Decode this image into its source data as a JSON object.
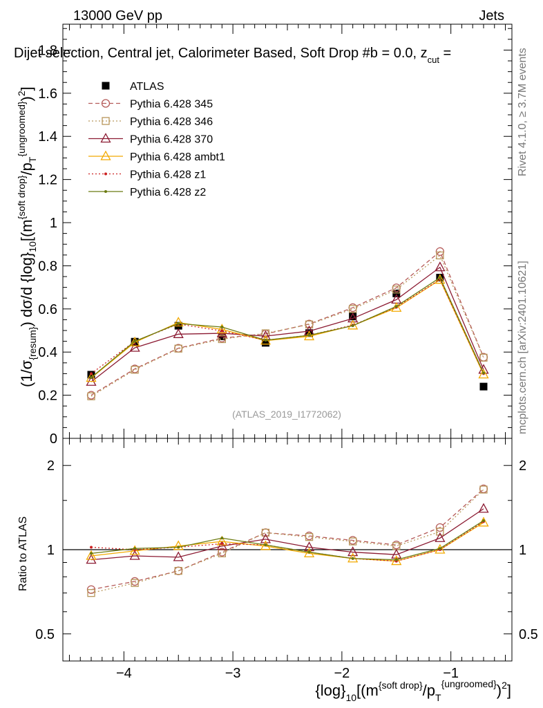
{
  "header": {
    "energy": "13000 GeV pp",
    "category": "Jets",
    "subtitle": "Dijet selection, Central jet, Calorimeter Based, Soft Drop #b = 0.0, z",
    "subtitle_sub": "cut",
    "subtitle_tail": " = "
  },
  "side_labels": {
    "rivet": "Rivet 4.1.0, ≥ 3.7M events",
    "mcplots": "mcplots.cern.ch [arXiv:2401.10621]"
  },
  "watermark": "(ATLAS_2019_I1772062)",
  "colors": {
    "ATLAS": "#000000",
    "Pythia 6.428 345": "#b55a58",
    "Pythia 6.428 346": "#b8965a",
    "Pythia 6.428 370": "#8b1a32",
    "Pythia 6.428 ambt1": "#f2a900",
    "Pythia 6.428 z1": "#cc2222",
    "Pythia 6.428 z2": "#6b7a10"
  },
  "chart_data": [
    {
      "type": "line",
      "panel": "main",
      "ylabel": "(1/σ_{resum}) dσ/d {log}_{10}[(m^{soft drop}/p_T^{ungroomed})^2]",
      "ylim": [
        0,
        1.92
      ],
      "xlim": [
        -4.56,
        -0.44
      ],
      "yticks": [
        0,
        0.2,
        0.4,
        0.6,
        0.8,
        1,
        1.2,
        1.4,
        1.6,
        1.8
      ],
      "x": [
        -4.3,
        -3.9,
        -3.5,
        -3.1,
        -2.7,
        -2.3,
        -1.9,
        -1.5,
        -1.1,
        -0.7
      ],
      "series": [
        {
          "name": "ATLAS",
          "marker": "square",
          "values": [
            0.295,
            0.448,
            0.522,
            0.473,
            0.443,
            0.488,
            0.565,
            0.672,
            0.745,
            0.24
          ]
        },
        {
          "name": "Pythia 6.428 345",
          "marker": "circle-open",
          "dash": "dashed",
          "values": [
            0.2,
            0.322,
            0.418,
            0.465,
            0.484,
            0.53,
            0.606,
            0.698,
            0.866,
            0.376
          ]
        },
        {
          "name": "Pythia 6.428 346",
          "marker": "square-open",
          "dash": "dotted",
          "values": [
            0.195,
            0.318,
            0.416,
            0.46,
            0.487,
            0.528,
            0.6,
            0.69,
            0.848,
            0.374
          ]
        },
        {
          "name": "Pythia 6.428 370",
          "marker": "triangle-open",
          "dash": "solid",
          "values": [
            0.262,
            0.42,
            0.483,
            0.487,
            0.474,
            0.497,
            0.556,
            0.643,
            0.793,
            0.318
          ]
        },
        {
          "name": "Pythia 6.428 ambt1",
          "marker": "triangle-open",
          "dash": "solid",
          "values": [
            0.28,
            0.445,
            0.537,
            0.505,
            0.453,
            0.473,
            0.523,
            0.605,
            0.735,
            0.296
          ]
        },
        {
          "name": "Pythia 6.428 z1",
          "marker": "dot",
          "dash": "dotted",
          "values": [
            0.3,
            0.45,
            0.53,
            0.498,
            0.455,
            0.478,
            0.525,
            0.608,
            0.737,
            0.3
          ]
        },
        {
          "name": "Pythia 6.428 z2",
          "marker": "dot",
          "dash": "solid",
          "values": [
            0.282,
            0.45,
            0.532,
            0.516,
            0.455,
            0.478,
            0.522,
            0.612,
            0.745,
            0.303
          ]
        }
      ]
    },
    {
      "type": "line",
      "panel": "ratio",
      "ylabel": "Ratio to ATLAS",
      "xlabel": "{log}_{10}[(m^{soft drop}/p_T^{ungroomed})^2]",
      "yscale": "log",
      "ylim": [
        0.4,
        2.5
      ],
      "xlim": [
        -4.56,
        -0.44
      ],
      "yticks": [
        0.5,
        1,
        2
      ],
      "xticks": [
        -4,
        -3,
        -2,
        -1
      ],
      "x": [
        -4.3,
        -3.9,
        -3.5,
        -3.1,
        -2.7,
        -2.3,
        -1.9,
        -1.5,
        -1.1,
        -0.7
      ],
      "series": [
        {
          "name": "Pythia 6.428 345",
          "values": [
            0.72,
            0.77,
            0.84,
            0.98,
            1.15,
            1.12,
            1.08,
            1.04,
            1.2,
            1.65
          ]
        },
        {
          "name": "Pythia 6.428 346",
          "values": [
            0.7,
            0.76,
            0.84,
            0.97,
            1.15,
            1.11,
            1.07,
            1.03,
            1.16,
            1.64
          ]
        },
        {
          "name": "Pythia 6.428 370",
          "values": [
            0.92,
            0.95,
            0.94,
            1.03,
            1.09,
            1.02,
            0.98,
            0.96,
            1.1,
            1.4
          ]
        },
        {
          "name": "Pythia 6.428 ambt1",
          "values": [
            0.95,
            0.99,
            1.03,
            1.07,
            1.03,
            0.97,
            0.93,
            0.91,
            1.0,
            1.25
          ]
        },
        {
          "name": "Pythia 6.428 z1",
          "values": [
            1.02,
            1.0,
            1.02,
            1.05,
            1.04,
            0.98,
            0.93,
            0.91,
            1.0,
            1.26
          ]
        },
        {
          "name": "Pythia 6.428 z2",
          "values": [
            0.97,
            1.01,
            1.02,
            1.1,
            1.04,
            0.98,
            0.93,
            0.92,
            1.01,
            1.27
          ]
        }
      ]
    }
  ]
}
